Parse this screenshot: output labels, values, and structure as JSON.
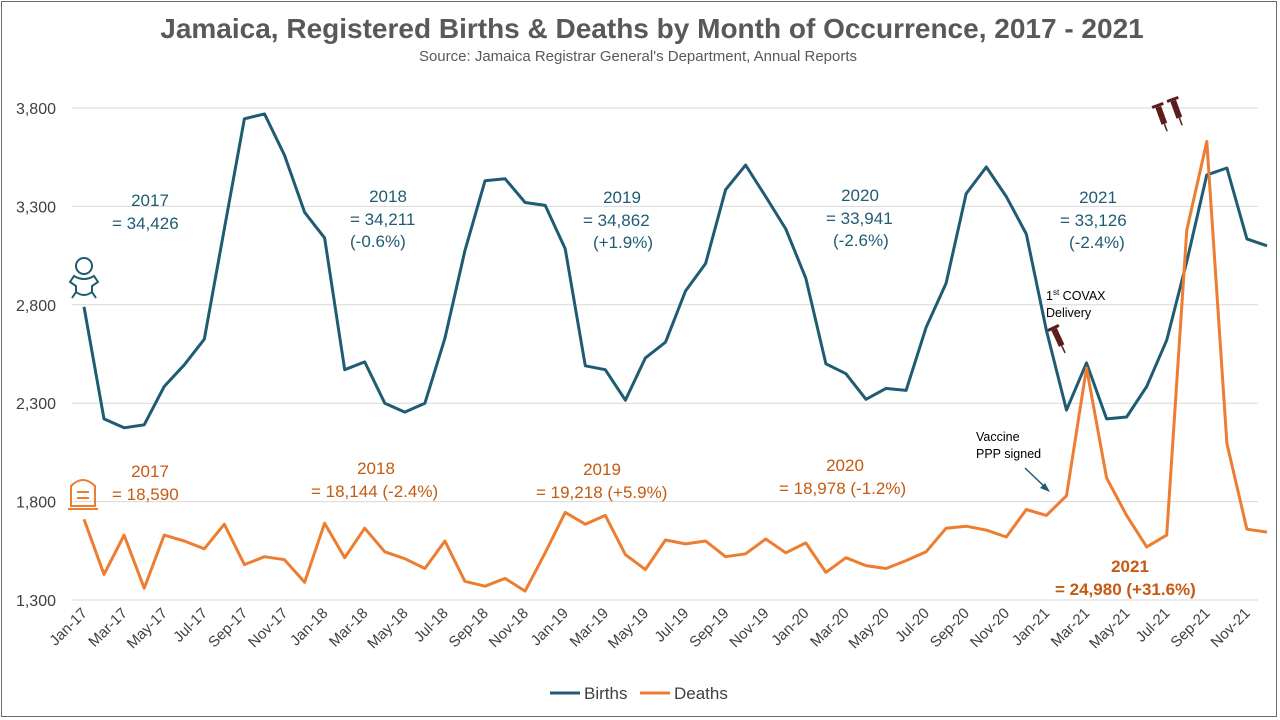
{
  "chart_data": {
    "type": "line",
    "title": "Jamaica, Registered Births & Deaths by Month of Occurrence, 2017 - 2021",
    "subtitle": "Source: Jamaica Registrar General's Department, Annual Reports",
    "ylim": [
      1300,
      3800
    ],
    "yticks": [
      "1,300",
      "1,800",
      "2,300",
      "2,800",
      "3,300",
      "3,800"
    ],
    "ytick_values": [
      1300,
      1800,
      2300,
      2800,
      3300,
      3800
    ],
    "grid": true,
    "legend_position": "bottom",
    "x": [
      "Jan-17",
      "Feb-17",
      "Mar-17",
      "Apr-17",
      "May-17",
      "Jun-17",
      "Jul-17",
      "Aug-17",
      "Sep-17",
      "Oct-17",
      "Nov-17",
      "Dec-17",
      "Jan-18",
      "Feb-18",
      "Mar-18",
      "Apr-18",
      "May-18",
      "Jun-18",
      "Jul-18",
      "Aug-18",
      "Sep-18",
      "Oct-18",
      "Nov-18",
      "Dec-18",
      "Jan-19",
      "Feb-19",
      "Mar-19",
      "Apr-19",
      "May-19",
      "Jun-19",
      "Jul-19",
      "Aug-19",
      "Sep-19",
      "Oct-19",
      "Nov-19",
      "Dec-19",
      "Jan-20",
      "Feb-20",
      "Mar-20",
      "Apr-20",
      "May-20",
      "Jun-20",
      "Jul-20",
      "Aug-20",
      "Sep-20",
      "Oct-20",
      "Nov-20",
      "Dec-20",
      "Jan-21",
      "Feb-21",
      "Mar-21",
      "Apr-21",
      "May-21",
      "Jun-21",
      "Jul-21",
      "Aug-21",
      "Sep-21",
      "Oct-21",
      "Nov-21",
      "Dec-21"
    ],
    "xtick_labels": [
      "Jan-17",
      "Mar-17",
      "May-17",
      "Jul-17",
      "Sep-17",
      "Nov-17",
      "Jan-18",
      "Mar-18",
      "May-18",
      "Jul-18",
      "Sep-18",
      "Nov-18",
      "Jan-19",
      "Mar-19",
      "May-19",
      "Jul-19",
      "Sep-19",
      "Nov-19",
      "Jan-20",
      "Mar-20",
      "May-20",
      "Jul-20",
      "Sep-20",
      "Nov-20",
      "Jan-21",
      "Mar-21",
      "May-21",
      "Jul-21",
      "Sep-21",
      "Nov-21"
    ],
    "series": [
      {
        "name": "Births",
        "color": "#1f5c73",
        "values": [
          2790,
          2220,
          2175,
          2190,
          2385,
          2495,
          2625,
          3185,
          3745,
          3770,
          3560,
          3270,
          3140,
          2470,
          2510,
          2300,
          2255,
          2300,
          2630,
          3075,
          3430,
          3440,
          3320,
          3305,
          3085,
          2490,
          2470,
          2315,
          2530,
          2610,
          2870,
          3010,
          3385,
          3510,
          3350,
          3185,
          2935,
          2500,
          2450,
          2320,
          2375,
          2365,
          2685,
          2910,
          3365,
          3500,
          3350,
          3160,
          2670,
          2265,
          2505,
          2220,
          2230,
          2385,
          2620,
          3020,
          3460,
          3495,
          3135,
          3100
        ]
      },
      {
        "name": "Deaths",
        "color": "#ed7d31",
        "values": [
          1710,
          1430,
          1630,
          1360,
          1630,
          1600,
          1560,
          1685,
          1480,
          1520,
          1505,
          1390,
          1690,
          1515,
          1665,
          1545,
          1510,
          1460,
          1600,
          1395,
          1370,
          1410,
          1345,
          1540,
          1745,
          1685,
          1730,
          1530,
          1455,
          1605,
          1585,
          1600,
          1520,
          1535,
          1610,
          1540,
          1590,
          1440,
          1515,
          1475,
          1460,
          1500,
          1545,
          1665,
          1675,
          1655,
          1620,
          1760,
          1730,
          1830,
          2480,
          1920,
          1730,
          1570,
          1630,
          3180,
          3630,
          2095,
          1660,
          1645
        ]
      }
    ],
    "annotations": {
      "births": [
        {
          "year": "2017",
          "total": "= 34,426",
          "change": ""
        },
        {
          "year": "2018",
          "total": "= 34,211",
          "change": "(-0.6%)"
        },
        {
          "year": "2019",
          "total": "= 34,862",
          "change": "(+1.9%)"
        },
        {
          "year": "2020",
          "total": "= 33,941",
          "change": "(-2.6%)"
        },
        {
          "year": "2021",
          "total": "= 33,126",
          "change": "(-2.4%)"
        }
      ],
      "deaths": [
        {
          "year": "2017",
          "total": "= 18,590"
        },
        {
          "year": "2018",
          "total": "= 18,144 (-2.4%)"
        },
        {
          "year": "2019",
          "total": "= 19,218 (+5.9%)"
        },
        {
          "year": "2020",
          "total": "= 18,978 (-1.2%)"
        },
        {
          "year": "2021",
          "total": "= 24,980 (+31.6%)"
        }
      ],
      "covax_superscript": "st",
      "covax_line1_pre": "1",
      "covax_line1_post": " COVAX",
      "covax_line2": "Delivery",
      "vaccine_line1": "Vaccine",
      "vaccine_line2": "PPP signed"
    },
    "icons": [
      "baby-icon",
      "tombstone-icon",
      "syringe-icon"
    ]
  }
}
